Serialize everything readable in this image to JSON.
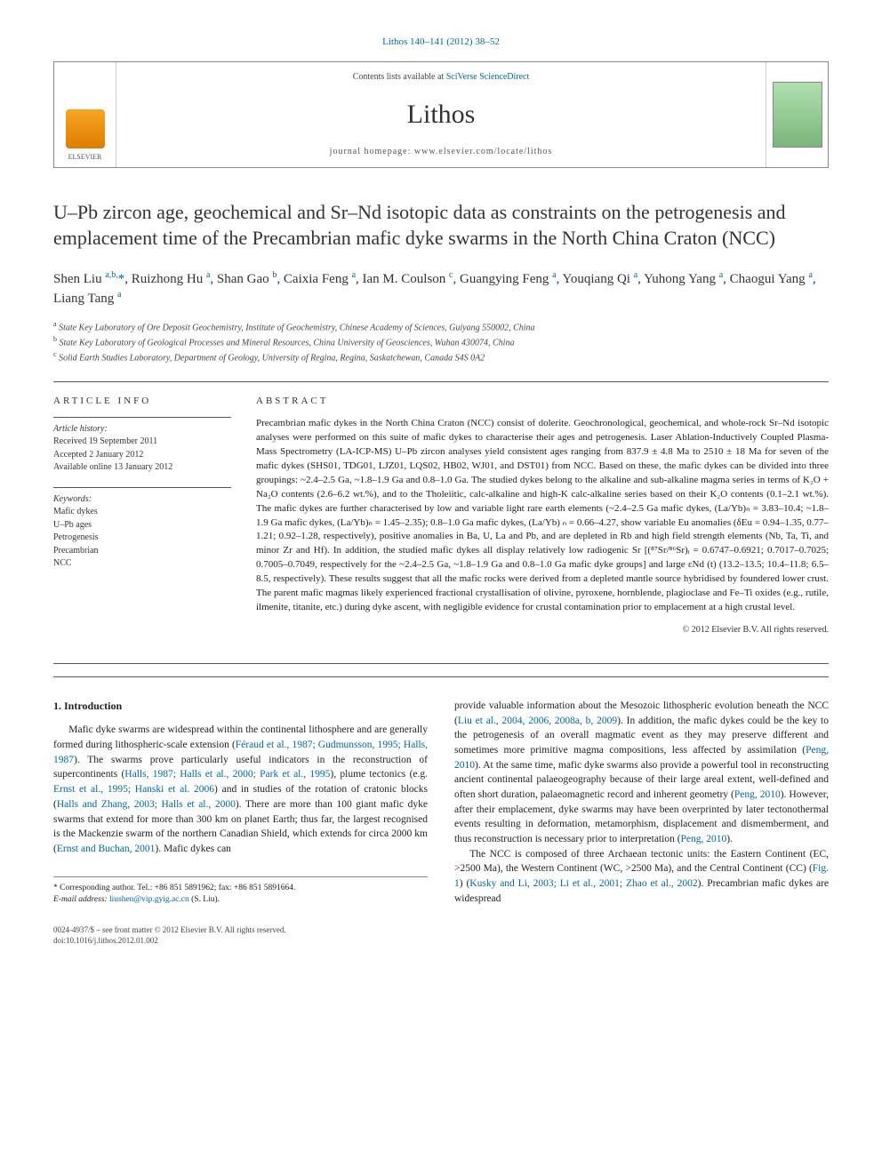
{
  "journal_ref": "Lithos 140–141 (2012) 38–52",
  "header": {
    "availability_prefix": "Contents lists available at ",
    "availability_link": "SciVerse ScienceDirect",
    "journal_name": "Lithos",
    "homepage": "journal homepage: www.elsevier.com/locate/lithos",
    "publisher": "ELSEVIER"
  },
  "title": "U–Pb zircon age, geochemical and Sr–Nd isotopic data as constraints on the petrogenesis and emplacement time of the Precambrian mafic dyke swarms in the North China Craton (NCC)",
  "author_line": "Shen Liu ",
  "authors_rest": ", Ruizhong Hu ",
  "authors": {
    "list": "Shen Liu a,b,*, Ruizhong Hu a, Shan Gao b, Caixia Feng a, Ian M. Coulson c, Guangying Feng a, Youqiang Qi a, Yuhong Yang a, Chaogui Yang a, Liang Tang a"
  },
  "affiliations": {
    "a": "State Key Laboratory of Ore Deposit Geochemistry, Institute of Geochemistry, Chinese Academy of Sciences, Guiyang 550002, China",
    "b": "State Key Laboratory of Geological Processes and Mineral Resources, China University of Geosciences, Wuhan 430074, China",
    "c": "Solid Earth Studies Laboratory, Department of Geology, University of Regina, Regina, Saskatchewan, Canada S4S 0A2"
  },
  "article_info": {
    "heading": "article info",
    "history_label": "Article history:",
    "received": "Received 19 September 2011",
    "accepted": "Accepted 2 January 2012",
    "online": "Available online 13 January 2012",
    "keywords_label": "Keywords:",
    "keywords": [
      "Mafic dykes",
      "U–Pb ages",
      "Petrogenesis",
      "Precambrian",
      "NCC"
    ]
  },
  "abstract": {
    "heading": "abstract",
    "text": "Precambrian mafic dykes in the North China Craton (NCC) consist of dolerite. Geochronological, geochemical, and whole-rock Sr–Nd isotopic analyses were performed on this suite of mafic dykes to characterise their ages and petrogenesis. Laser Ablation-Inductively Coupled Plasma-Mass Spectrometry (LA-ICP-MS) U–Pb zircon analyses yield consistent ages ranging from 837.9 ± 4.8 Ma to 2510 ± 18 Ma for seven of the mafic dykes (SHS01, TDG01, LJZ01, LQS02, HB02, WJ01, and DST01) from NCC. Based on these, the mafic dykes can be divided into three groupings: ~2.4–2.5 Ga, ~1.8–1.9 Ga and 0.8–1.0 Ga. The studied dykes belong to the alkaline and sub-alkaline magma series in terms of K₂O + Na₂O contents (2.6–6.2 wt.%), and to the Tholeiitic, calc-alkaline and high-K calc-alkaline series based on their K₂O contents (0.1–2.1 wt.%). The mafic dykes are further characterised by low and variable light rare earth elements (~2.4–2.5 Ga mafic dykes, (La/Yb)ₙ = 3.83–10.4; ~1.8–1.9 Ga mafic dykes, (La/Yb)ₙ = 1.45–2.35); 0.8–1.0 Ga mafic dykes, (La/Yb) ₙ = 0.66–4.27, show variable Eu anomalies (δEu = 0.94–1.35, 0.77–1.21; 0.92–1.28, respectively), positive anomalies in Ba, U, La and Pb, and are depleted in Rb and high field strength elements (Nb, Ta, Ti, and minor Zr and Hf). In addition, the studied mafic dykes all display relatively low radiogenic Sr [(⁸⁷Sr/⁸⁶Sr)ᵢ = 0.6747–0.6921; 0.7017–0.7025; 0.7005–0.7049, respectively for the ~2.4–2.5 Ga, ~1.8–1.9 Ga and 0.8–1.0 Ga mafic dyke groups] and large εNd (t) (13.2–13.5; 10.4–11.8; 6.5–8.5, respectively). These results suggest that all the mafic rocks were derived from a depleted mantle source hybridised by foundered lower crust. The parent mafic magmas likely experienced fractional crystallisation of olivine, pyroxene, hornblende, plagioclase and Fe–Ti oxides (e.g., rutile, ilmenite, titanite, etc.) during dyke ascent, with negligible evidence for crustal contamination prior to emplacement at a high crustal level.",
    "copyright": "© 2012 Elsevier B.V. All rights reserved."
  },
  "intro": {
    "heading": "1. Introduction",
    "p1a": "Mafic dyke swarms are widespread within the continental lithosphere and are generally formed during lithospheric-scale extension (",
    "c1": "Féraud et al., 1987; Gudmunsson, 1995; Halls, 1987",
    "p1b": "). The swarms prove particularly useful indicators in the reconstruction of supercontinents (",
    "c2": "Halls, 1987; Halls et al., 2000; Park et al., 1995",
    "p1c": "), plume tectonics (e.g. ",
    "c3": "Ernst et al., 1995; Hanski et al. 2006",
    "p1d": ") and in studies of the rotation of cratonic blocks (",
    "c4": "Halls and Zhang, 2003; Halls et al., 2000",
    "p1e": "). There are more than 100 giant mafic dyke swarms that extend for more than 300 km on planet Earth; thus far, the largest recognised is the Mackenzie swarm of the northern Canadian Shield, which extends for circa 2000 km (",
    "c5": "Ernst and Buchan, 2001",
    "p1f": "). Mafic dykes can ",
    "p2a": "provide valuable information about the Mesozoic lithospheric evolution beneath the NCC (",
    "c6": "Liu et al., 2004, 2006, 2008a, b, 2009",
    "p2b": "). In addition, the mafic dykes could be the key to the petrogenesis of an overall magmatic event as they may preserve different and sometimes more primitive magma compositions, less affected by assimilation (",
    "c7": "Peng, 2010",
    "p2c": "). At the same time, mafic dyke swarms also provide a powerful tool in reconstructing ancient continental palaeogeography because of their large areal extent, well-defined and often short duration, palaeomagnetic record and inherent geometry (",
    "c8": "Peng, 2010",
    "p2d": "). However, after their emplacement, dyke swarms may have been overprinted by later tectonothermal events resulting in deformation, metamorphism, displacement and dismemberment, and thus reconstruction is necessary prior to interpretation (",
    "c9": "Peng, 2010",
    "p2e": ").",
    "p3a": "The NCC is composed of three Archaean tectonic units: the Eastern Continent (EC, >2500 Ma), the Western Continent (WC, >2500 Ma), and the Central Continent (CC) (",
    "c10": "Fig. 1",
    "p3b": ") (",
    "c11": "Kusky and Li, 2003; Li et al., 2001; Zhao et al., 2002",
    "p3c": "). Precambrian mafic dykes are widespread"
  },
  "footnote": {
    "corr": "* Corresponding author. Tel.: +86 851 5891962; fax: +86 851 5891664.",
    "email_label": "E-mail address: ",
    "email": "liushen@vip.gyig.ac.cn",
    "email_suffix": " (S. Liu)."
  },
  "footer": {
    "line1": "0024-4937/$ – see front matter © 2012 Elsevier B.V. All rights reserved.",
    "line2": "doi:10.1016/j.lithos.2012.01.002"
  },
  "colors": {
    "link": "#0066aa",
    "text": "#222222",
    "rule": "#555555"
  }
}
